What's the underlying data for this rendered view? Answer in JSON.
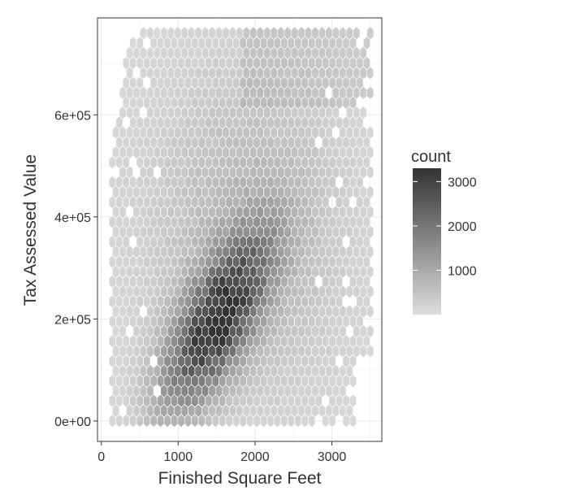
{
  "chart_data": {
    "type": "heatmap",
    "subtype": "hexbin",
    "title": "",
    "xlabel": "Finished Square Feet",
    "ylabel": "Tax Assessed Value",
    "xlim": [
      -50,
      3650
    ],
    "ylim": [
      -40000,
      790000
    ],
    "x_ticks": [
      0,
      1000,
      2000,
      3000
    ],
    "x_tick_labels": [
      "0",
      "1000",
      "2000",
      "3000"
    ],
    "y_ticks": [
      0,
      200000,
      400000,
      600000
    ],
    "y_tick_labels": [
      "0e+00",
      "2e+05",
      "4e+05",
      "6e+05"
    ],
    "grid": true,
    "legend": {
      "title": "count",
      "placement": "right",
      "range": [
        0,
        3300
      ],
      "breaks": [
        1000,
        2000,
        3000
      ],
      "break_labels": [
        "1000",
        "2000",
        "3000"
      ],
      "low_color": "#dddddd",
      "high_color": "#333333"
    },
    "bin_width_x": 100,
    "bin_width_y": 19800,
    "density_model": {
      "peak_x": 1500,
      "peak_y": 210000,
      "peak_count": 3000,
      "x_range_data": [
        100,
        3500
      ],
      "y_range_data": [
        0,
        760000
      ]
    }
  }
}
